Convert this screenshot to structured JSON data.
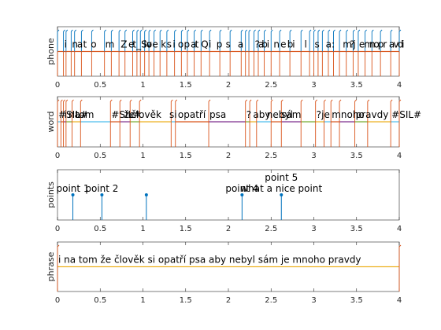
{
  "chart_data": [
    {
      "type": "annotation-tier",
      "ylabel": "phone",
      "xlim": [
        0,
        4
      ],
      "xticks": [
        0,
        0.5,
        1,
        1.5,
        2,
        2.5,
        3,
        3.5,
        4
      ],
      "boundaries": [
        0.0,
        0.07,
        0.1,
        0.16,
        0.2,
        0.28,
        0.4,
        0.55,
        0.63,
        0.72,
        0.79,
        0.88,
        0.93,
        0.97,
        1.02,
        1.07,
        1.13,
        1.2,
        1.28,
        1.37,
        1.45,
        1.52,
        1.6,
        1.68,
        1.78,
        1.9,
        2.02,
        2.15,
        2.2,
        2.24,
        2.3,
        2.35,
        2.42,
        2.5,
        2.6,
        2.72,
        2.85,
        2.95,
        3.0,
        3.05,
        3.1,
        3.17,
        3.23,
        3.3,
        3.38,
        3.46,
        3.52,
        3.6,
        3.68,
        3.78,
        3.9,
        4.0
      ],
      "labels": [
        {
          "t": 0.07,
          "text": "i"
        },
        {
          "t": 0.16,
          "text": "n"
        },
        {
          "t": 0.22,
          "text": "a"
        },
        {
          "t": 0.29,
          "text": "t"
        },
        {
          "t": 0.38,
          "text": "o"
        },
        {
          "t": 0.55,
          "text": "m"
        },
        {
          "t": 0.73,
          "text": "Z"
        },
        {
          "t": 0.82,
          "text": "e"
        },
        {
          "t": 0.87,
          "text": "t_S"
        },
        {
          "t": 1.0,
          "text": "lo"
        },
        {
          "t": 1.03,
          "text": "v"
        },
        {
          "t": 1.1,
          "text": "e"
        },
        {
          "t": 1.2,
          "text": "k"
        },
        {
          "t": 1.27,
          "text": "s"
        },
        {
          "t": 1.34,
          "text": "i"
        },
        {
          "t": 1.4,
          "text": "o"
        },
        {
          "t": 1.47,
          "text": "p"
        },
        {
          "t": 1.55,
          "text": "a"
        },
        {
          "t": 1.6,
          "text": "t"
        },
        {
          "t": 1.67,
          "text": "Q"
        },
        {
          "t": 1.76,
          "text": "i"
        },
        {
          "t": 1.85,
          "text": "p"
        },
        {
          "t": 1.96,
          "text": "s"
        },
        {
          "t": 2.1,
          "text": "a"
        },
        {
          "t": 2.3,
          "text": "?"
        },
        {
          "t": 2.34,
          "text": "a"
        },
        {
          "t": 2.38,
          "text": "b"
        },
        {
          "t": 2.44,
          "text": "i"
        },
        {
          "t": 2.52,
          "text": "n"
        },
        {
          "t": 2.6,
          "text": "e"
        },
        {
          "t": 2.68,
          "text": "b"
        },
        {
          "t": 2.74,
          "text": "i"
        },
        {
          "t": 2.88,
          "text": "l"
        },
        {
          "t": 3.0,
          "text": "s"
        },
        {
          "t": 3.13,
          "text": "a:"
        },
        {
          "t": 3.33,
          "text": "m"
        },
        {
          "t": 3.41,
          "text": "?"
        },
        {
          "t": 3.45,
          "text": "j"
        },
        {
          "t": 3.52,
          "text": "e"
        },
        {
          "t": 3.58,
          "text": "m"
        },
        {
          "t": 3.64,
          "text": "n"
        },
        {
          "t": 3.69,
          "text": "o"
        },
        {
          "t": 3.74,
          "text": "p"
        },
        {
          "t": 3.8,
          "text": "r"
        },
        {
          "t": 3.87,
          "text": "a"
        },
        {
          "t": 3.92,
          "text": "v"
        },
        {
          "t": 3.97,
          "text": "d"
        },
        {
          "t": 4.02,
          "text": "i"
        }
      ],
      "colors": {
        "tick": "#0072bd",
        "segment": "#d95319"
      }
    },
    {
      "type": "annotation-tier",
      "ylabel": "word",
      "xlim": [
        0,
        4
      ],
      "xticks": [
        0,
        0.5,
        1,
        1.5,
        2,
        2.5,
        3,
        3.5,
        4
      ],
      "boundaries": [
        0.0,
        0.04,
        0.07,
        0.1,
        0.17,
        0.27,
        0.62,
        0.73,
        0.85,
        0.96,
        1.33,
        1.38,
        1.77,
        2.2,
        2.25,
        2.33,
        2.5,
        2.62,
        2.85,
        3.02,
        3.12,
        3.2,
        3.3,
        3.48,
        3.63,
        3.9,
        4.0
      ],
      "labels": [
        {
          "t": 0.0,
          "text": "#SIL#"
        },
        {
          "t": 0.07,
          "text": "i"
        },
        {
          "t": 0.12,
          "text": "na"
        },
        {
          "t": 0.2,
          "text": "tom"
        },
        {
          "t": 0.62,
          "text": "#SIL#"
        },
        {
          "t": 0.77,
          "text": "že"
        },
        {
          "t": 0.85,
          "text": "člověk"
        },
        {
          "t": 1.3,
          "text": "si"
        },
        {
          "t": 1.4,
          "text": "opatří"
        },
        {
          "t": 1.77,
          "text": "psa"
        },
        {
          "t": 2.2,
          "text": "?"
        },
        {
          "t": 2.28,
          "text": "aby"
        },
        {
          "t": 2.44,
          "text": "nebyl"
        },
        {
          "t": 2.61,
          "text": "sám"
        },
        {
          "t": 3.02,
          "text": "?"
        },
        {
          "t": 3.08,
          "text": "je"
        },
        {
          "t": 3.2,
          "text": "mnoho"
        },
        {
          "t": 3.48,
          "text": "pravdy"
        },
        {
          "t": 3.9,
          "text": "#SIL#"
        }
      ],
      "colors": {
        "tick": "#d95319",
        "lines": [
          "#4dbeee",
          "#d95319",
          "#7e2f8e",
          "#77ac30",
          "#edb120"
        ]
      }
    },
    {
      "type": "stem",
      "ylabel": "points",
      "xlim": [
        0,
        4
      ],
      "xticks": [
        0,
        0.5,
        1,
        1.5,
        2,
        2.5,
        3,
        3.5,
        4
      ],
      "ylim": [
        0,
        1
      ],
      "points": [
        {
          "x": 0.18,
          "y": 0.5,
          "label": "point 1"
        },
        {
          "x": 0.52,
          "y": 0.5,
          "label": "point 2"
        },
        {
          "x": 1.04,
          "y": 0.5,
          "label": ""
        },
        {
          "x": 2.16,
          "y": 0.5,
          "label": "point 4"
        },
        {
          "x": 2.62,
          "y": 0.5,
          "label": "point 5\nwhat a nice point"
        }
      ],
      "color": "#0072bd"
    },
    {
      "type": "annotation-tier",
      "ylabel": "phrase",
      "xlim": [
        0,
        4
      ],
      "xticks": [
        0,
        0.5,
        1,
        1.5,
        2,
        2.5,
        3,
        3.5,
        4
      ],
      "boundaries": [
        0.0,
        4.0
      ],
      "labels": [
        {
          "t": 0.0,
          "text": "i na tom že člověk si opatří psa aby nebyl sám je mnoho pravdy"
        }
      ],
      "colors": {
        "tick": "#d95319",
        "segment": "#edb120"
      }
    }
  ]
}
